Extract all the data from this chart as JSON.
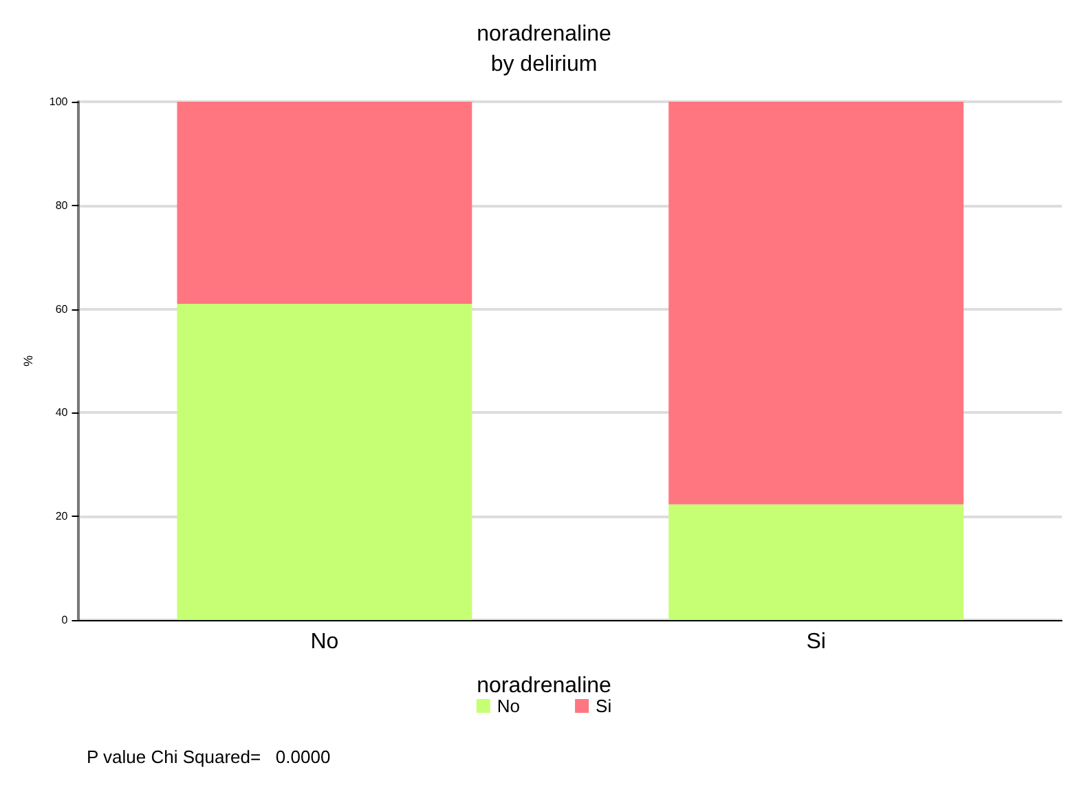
{
  "chart_data": {
    "type": "bar",
    "title": "noradrenaline",
    "subtitle": "by delirium",
    "ylabel": "%",
    "legend_title": "noradrenaline",
    "categories": [
      "No",
      "Si"
    ],
    "stacked": true,
    "series": [
      {
        "name": "No",
        "color": "#c6ff73",
        "values": [
          61,
          22.3
        ]
      },
      {
        "name": "Si",
        "color": "#ff7680",
        "values": [
          39,
          77.7
        ]
      }
    ],
    "ylim": [
      0,
      100
    ],
    "yticks": [
      0,
      20,
      40,
      60,
      80,
      100
    ],
    "grid": "y",
    "legend": "bottom",
    "annotations": [
      "P value Chi Squared=   0.0000"
    ]
  }
}
